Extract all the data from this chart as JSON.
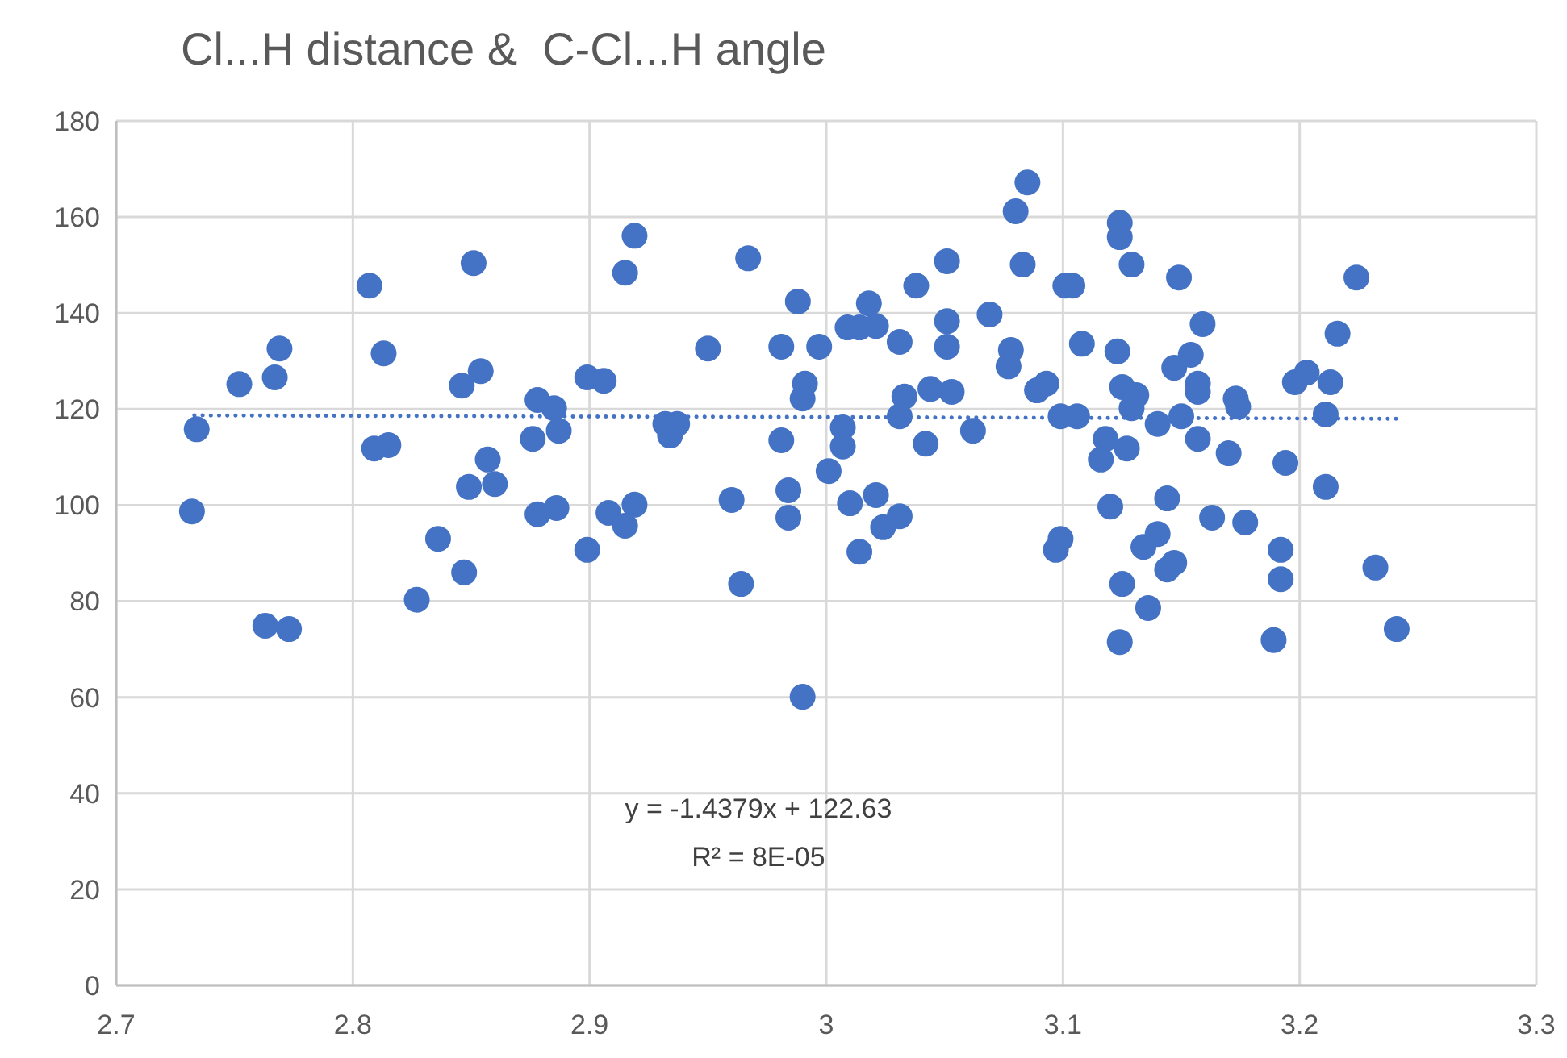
{
  "chart_data": {
    "type": "scatter",
    "title": "Cl...H distance &  C-Cl...H angle",
    "xlim": [
      2.7,
      3.3
    ],
    "xticks": [
      2.7,
      2.8,
      2.9,
      3,
      3.1,
      3.2,
      3.3
    ],
    "ylim": [
      0,
      180
    ],
    "yticks": [
      0,
      20,
      40,
      60,
      80,
      100,
      120,
      140,
      160,
      180
    ],
    "grid": true,
    "marker": "circle",
    "annotations": [
      "y = -1.4379x + 122.63",
      "R² = 8E-05"
    ],
    "series": [
      {
        "color": "#4472c4",
        "x": [
          2.732,
          2.734,
          2.752,
          2.769,
          2.767,
          2.763,
          2.773,
          2.807,
          2.813,
          2.809,
          2.815,
          2.827,
          2.836,
          2.847,
          2.846,
          2.851,
          2.854,
          2.857,
          2.849,
          2.86,
          2.878,
          2.885,
          2.876,
          2.887,
          2.878,
          2.886,
          2.899,
          2.899,
          2.906,
          2.908,
          2.919,
          2.915,
          2.915,
          2.919,
          2.932,
          2.937,
          2.934,
          2.95,
          2.96,
          2.964,
          2.967,
          2.981,
          2.981,
          2.984,
          2.984,
          2.988,
          2.991,
          2.99,
          2.99,
          2.997,
          3.001,
          3.007,
          3.007,
          3.009,
          3.01,
          3.014,
          3.014,
          3.018,
          3.021,
          3.021,
          3.024,
          3.031,
          3.031,
          3.033,
          3.031,
          3.038,
          3.042,
          3.044,
          3.053,
          3.051,
          3.051,
          3.051,
          3.062,
          3.069,
          3.078,
          3.077,
          3.08,
          3.085,
          3.083,
          3.089,
          3.093,
          3.097,
          3.099,
          3.101,
          3.104,
          3.099,
          3.106,
          3.108,
          3.116,
          3.118,
          3.12,
          3.124,
          3.124,
          3.123,
          3.125,
          3.125,
          3.124,
          3.127,
          3.129,
          3.129,
          3.131,
          3.134,
          3.14,
          3.136,
          3.14,
          3.144,
          3.147,
          3.147,
          3.144,
          3.149,
          3.15,
          3.154,
          3.157,
          3.157,
          3.159,
          3.157,
          3.163,
          3.173,
          3.174,
          3.17,
          3.177,
          3.189,
          3.192,
          3.192,
          3.194,
          3.198,
          3.203,
          3.213,
          3.211,
          3.211,
          3.216,
          3.224,
          3.232,
          3.241
        ],
        "values": [
          98.7,
          115.8,
          125.2,
          132.6,
          126.6,
          74.9,
          74.2,
          145.7,
          131.6,
          111.8,
          112.5,
          80.3,
          93.0,
          86.0,
          124.9,
          150.4,
          127.9,
          109.5,
          103.8,
          104.4,
          121.9,
          120.2,
          113.8,
          115.5,
          98.1,
          99.4,
          90.7,
          126.6,
          125.9,
          98.4,
          100.1,
          95.7,
          148.4,
          156.1,
          116.9,
          116.9,
          114.5,
          132.6,
          101.1,
          83.6,
          151.4,
          133.0,
          113.5,
          103.1,
          97.4,
          142.4,
          125.3,
          122.2,
          60.1,
          133.0,
          107.1,
          116.2,
          112.2,
          137.0,
          100.4,
          90.3,
          137.0,
          142.0,
          137.3,
          102.1,
          95.4,
          134.0,
          118.5,
          122.6,
          97.7,
          145.7,
          112.8,
          124.2,
          123.6,
          150.8,
          138.3,
          133.0,
          115.5,
          139.7,
          132.3,
          128.9,
          161.2,
          167.2,
          150.1,
          123.9,
          125.3,
          90.7,
          93.0,
          145.7,
          145.7,
          118.5,
          118.5,
          133.6,
          109.5,
          113.8,
          99.7,
          158.8,
          155.8,
          132.0,
          124.6,
          83.6,
          71.5,
          111.8,
          150.1,
          120.2,
          122.9,
          91.3,
          94.0,
          78.6,
          116.9,
          101.4,
          128.6,
          88.0,
          86.6,
          147.4,
          118.5,
          131.3,
          125.3,
          123.6,
          137.7,
          113.8,
          97.4,
          122.2,
          120.5,
          110.8,
          96.4,
          71.9,
          90.7,
          84.6,
          108.8,
          125.6,
          127.6,
          125.6,
          118.9,
          103.8,
          135.7,
          147.4,
          87.0,
          74.2
        ]
      },
      {
        "color": "#4472c4",
        "type": "line",
        "marker": "none",
        "line_style": "dotted",
        "x": [
          2.733,
          3.243
        ],
        "values": [
          118.7,
          118.0
        ]
      }
    ]
  }
}
